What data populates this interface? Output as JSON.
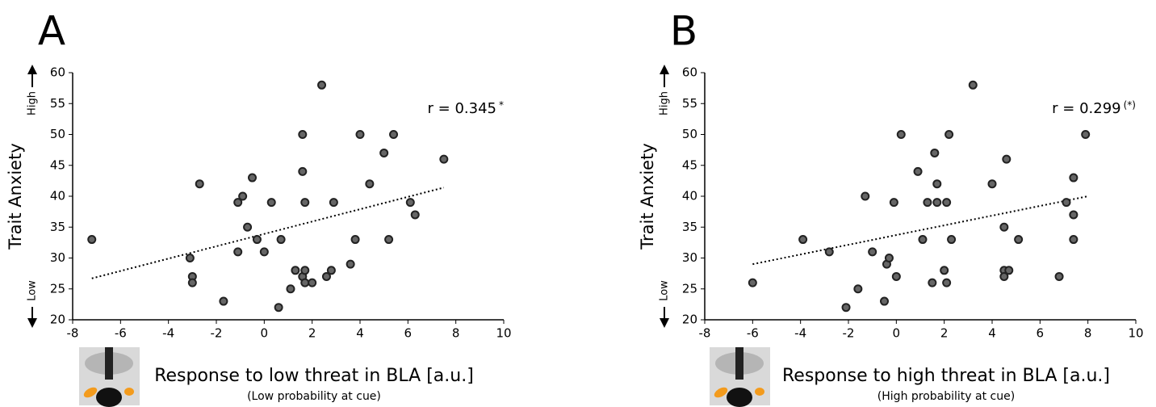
{
  "chart_data": [
    {
      "type": "scatter",
      "panel_label": "A",
      "ylabel": "Trait Anxiety",
      "y_high": "High",
      "y_low": "Low",
      "xlabel": "Response to low threat in BLA [a.u.]",
      "xlabel_note": "(Low probability at cue)",
      "annotation": "r = 0.345",
      "annotation_mark": "*",
      "color": "#666666",
      "x": [
        -7.2,
        -3.1,
        -3.0,
        -3.0,
        -2.7,
        -1.7,
        -1.1,
        -1.1,
        -0.9,
        -0.7,
        -0.5,
        -0.3,
        0,
        0.3,
        0.7,
        0.6,
        1.1,
        1.3,
        1.6,
        1.6,
        1.6,
        1.7,
        1.7,
        1.7,
        2.0,
        2.4,
        2.6,
        2.8,
        2.9,
        3.6,
        3.8,
        4.0,
        4.4,
        5.0,
        5.2,
        5.4,
        6.1,
        6.3,
        7.5
      ],
      "y": [
        33,
        30,
        27,
        26,
        42,
        23,
        39,
        31,
        40,
        35,
        43,
        33,
        31,
        39,
        33,
        22,
        25,
        28,
        27,
        50,
        44,
        39,
        28,
        26,
        26,
        58,
        27,
        28,
        39,
        29,
        33,
        50,
        42,
        47,
        33,
        50,
        39,
        37,
        46
      ],
      "fit_line": {
        "x": [
          -7.2,
          7.5
        ],
        "y": [
          26.7,
          41.4
        ]
      },
      "xlim": [
        -8,
        10
      ],
      "ylim": [
        20,
        60
      ],
      "xticks": [
        -8,
        -6,
        -4,
        -2,
        0,
        2,
        4,
        6,
        8,
        10
      ],
      "yticks": [
        20,
        25,
        30,
        35,
        40,
        45,
        50,
        55,
        60
      ]
    },
    {
      "type": "scatter",
      "panel_label": "B",
      "ylabel": "Trait Anxiety",
      "y_high": "High",
      "y_low": "Low",
      "xlabel": "Response to high threat in BLA [a.u.]",
      "xlabel_note": "(High probability at cue)",
      "annotation": "r = 0.299",
      "annotation_mark": "(*)",
      "color": "#666666",
      "x": [
        -6.0,
        -3.9,
        -2.8,
        -1.6,
        -1.3,
        -1.0,
        -0.5,
        -2.1,
        -0.4,
        -0.3,
        -0.1,
        0,
        0.2,
        0.9,
        1.1,
        1.3,
        1.5,
        1.6,
        1.7,
        1.7,
        2.0,
        2.1,
        2.1,
        2.2,
        2.3,
        3.2,
        4.0,
        4.5,
        4.5,
        4.5,
        4.6,
        4.7,
        5.1,
        6.8,
        7.1,
        7.4,
        7.4,
        7.4,
        7.9
      ],
      "y": [
        26,
        33,
        31,
        25,
        40,
        31,
        23,
        22,
        29,
        30,
        39,
        27,
        50,
        44,
        33,
        39,
        26,
        47,
        42,
        39,
        28,
        26,
        39,
        50,
        33,
        58,
        42,
        35,
        28,
        27,
        46,
        28,
        33,
        27,
        39,
        43,
        37,
        33,
        50
      ],
      "fit_line": {
        "x": [
          -6,
          8
        ],
        "y": [
          29,
          40
        ]
      },
      "xlim": [
        -8,
        10
      ],
      "ylim": [
        20,
        60
      ],
      "xticks": [
        -8,
        -6,
        -4,
        -2,
        0,
        2,
        4,
        6,
        8,
        10
      ],
      "yticks": [
        20,
        25,
        30,
        35,
        40,
        45,
        50,
        55,
        60
      ]
    }
  ]
}
